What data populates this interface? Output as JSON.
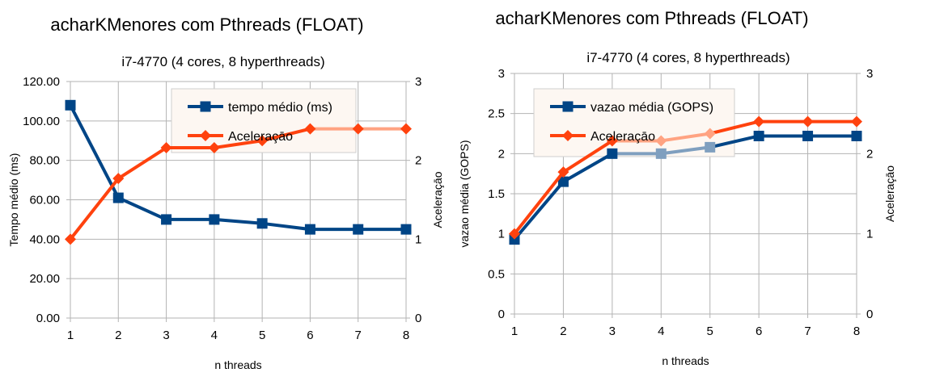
{
  "colors": {
    "series_blue": "#004586",
    "series_orange": "#ff420e",
    "orange_light": "#ffa382",
    "blue_light": "#7f9fbf",
    "grid": "#b3b3b3",
    "axis": "#b3b3b3",
    "legend_bg": "#fdf7f2"
  },
  "chart_data": [
    {
      "type": "line",
      "title": "acharKMenores com Pthreads (FLOAT)",
      "subtitle": "i7-4770 (4 cores, 8 hyperthreads)",
      "xlabel": "n threads",
      "ylabel": "Tempo médio (ms)",
      "ylabel_right": "Aceleraçāo",
      "x": [
        1,
        2,
        3,
        4,
        5,
        6,
        7,
        8
      ],
      "ylim": [
        0,
        120
      ],
      "yticks": [
        "0.00",
        "20.00",
        "40.00",
        "60.00",
        "80.00",
        "100.00",
        "120.00"
      ],
      "y2lim": [
        0,
        3
      ],
      "y2ticks": [
        "0",
        "1",
        "2",
        "3"
      ],
      "grid": true,
      "legend_position": "top-right",
      "series": [
        {
          "name": "tempo médio (ms)",
          "axis": "left",
          "marker": "square",
          "values": [
            108,
            61,
            50,
            50,
            48,
            45,
            45,
            45
          ]
        },
        {
          "name": "Aceleraçāo",
          "axis": "right",
          "marker": "diamond",
          "values": [
            1.0,
            1.77,
            2.16,
            2.16,
            2.25,
            2.4,
            2.4,
            2.4
          ]
        }
      ]
    },
    {
      "type": "line",
      "title": "acharKMenores com Pthreads (FLOAT)",
      "subtitle": "i7-4770 (4 cores, 8 hyperthreads)",
      "xlabel": "n threads",
      "ylabel": "vazao média (GOPS)",
      "ylabel_right": "Aceleraçāo",
      "x": [
        1,
        2,
        3,
        4,
        5,
        6,
        7,
        8
      ],
      "ylim": [
        0,
        3
      ],
      "yticks": [
        "0",
        "0.5",
        "1",
        "1.5",
        "2",
        "2.5",
        "3"
      ],
      "y2lim": [
        0,
        3
      ],
      "y2ticks": [
        "0",
        "1",
        "2",
        "3"
      ],
      "grid": true,
      "legend_position": "top-left",
      "series": [
        {
          "name": "vazao média (GOPS)",
          "axis": "left",
          "marker": "square",
          "values": [
            0.93,
            1.65,
            2.0,
            2.0,
            2.08,
            2.22,
            2.22,
            2.22
          ]
        },
        {
          "name": "Aceleraçāo",
          "axis": "right",
          "marker": "diamond",
          "values": [
            1.0,
            1.77,
            2.16,
            2.16,
            2.25,
            2.4,
            2.4,
            2.4
          ]
        }
      ]
    }
  ]
}
